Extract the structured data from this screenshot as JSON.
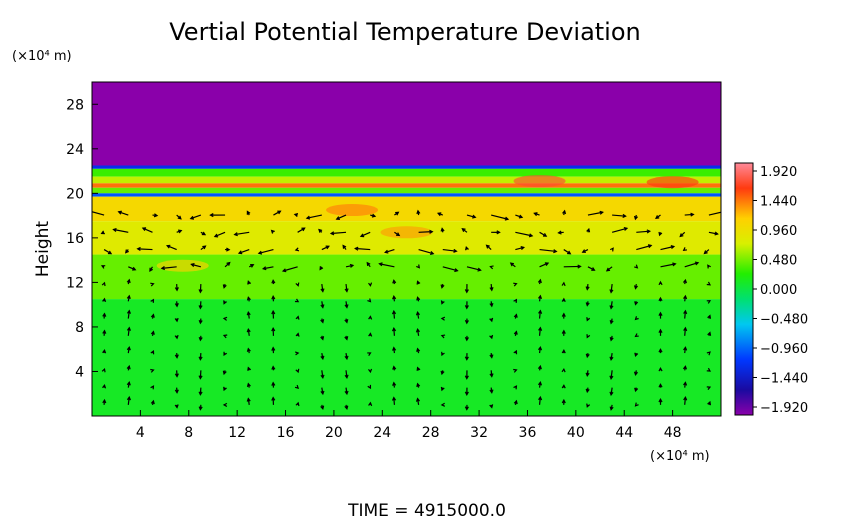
{
  "chart_data": {
    "type": "heatmap",
    "title": "Vertial Potential Temperature Deviation",
    "ylabel": "Height",
    "y_unit": "(×10⁴ m)",
    "x_unit": "(×10⁴ m)",
    "footer": "TIME  =  4915000.0",
    "xlim": [
      0,
      52
    ],
    "ylim": [
      0,
      30
    ],
    "x_ticks": [
      4,
      8,
      12,
      16,
      20,
      24,
      28,
      32,
      36,
      40,
      44,
      48
    ],
    "y_ticks": [
      4,
      8,
      12,
      16,
      20,
      24,
      28
    ],
    "colorbar": {
      "ticks": [
        "1.920",
        "1.440",
        "0.960",
        "0.480",
        "0.000",
        "−0.480",
        "−0.960",
        "−1.440",
        "−1.920"
      ],
      "min": -1.92,
      "max": 1.92
    },
    "bands": [
      {
        "y0": 22.5,
        "y1": 30,
        "value": -1.92
      },
      {
        "y0": 22.2,
        "y1": 22.5,
        "value": -1.1
      },
      {
        "y0": 21.5,
        "y1": 22.2,
        "value": 0.2
      },
      {
        "y0": 20.9,
        "y1": 21.5,
        "value": 0.5
      },
      {
        "y0": 20.5,
        "y1": 20.9,
        "value": 1.3
      },
      {
        "y0": 20.0,
        "y1": 20.5,
        "value": 0.3
      },
      {
        "y0": 19.7,
        "y1": 20.0,
        "value": -0.9
      },
      {
        "y0": 17.5,
        "y1": 19.7,
        "value": 0.85
      },
      {
        "y0": 14.5,
        "y1": 17.5,
        "value": 0.62
      },
      {
        "y0": 10.5,
        "y1": 14.5,
        "value": 0.3
      },
      {
        "y0": 0,
        "y1": 10.5,
        "value": 0.05
      }
    ],
    "hotspots": [
      {
        "x": 21.5,
        "y": 18.5,
        "value": 1.25
      },
      {
        "x": 26,
        "y": 16.5,
        "value": 1.15
      },
      {
        "x": 7.5,
        "y": 13.5,
        "value": 0.95
      },
      {
        "x": 37,
        "y": 21.1,
        "value": 1.6
      },
      {
        "x": 48,
        "y": 21.0,
        "value": 1.5
      }
    ]
  }
}
